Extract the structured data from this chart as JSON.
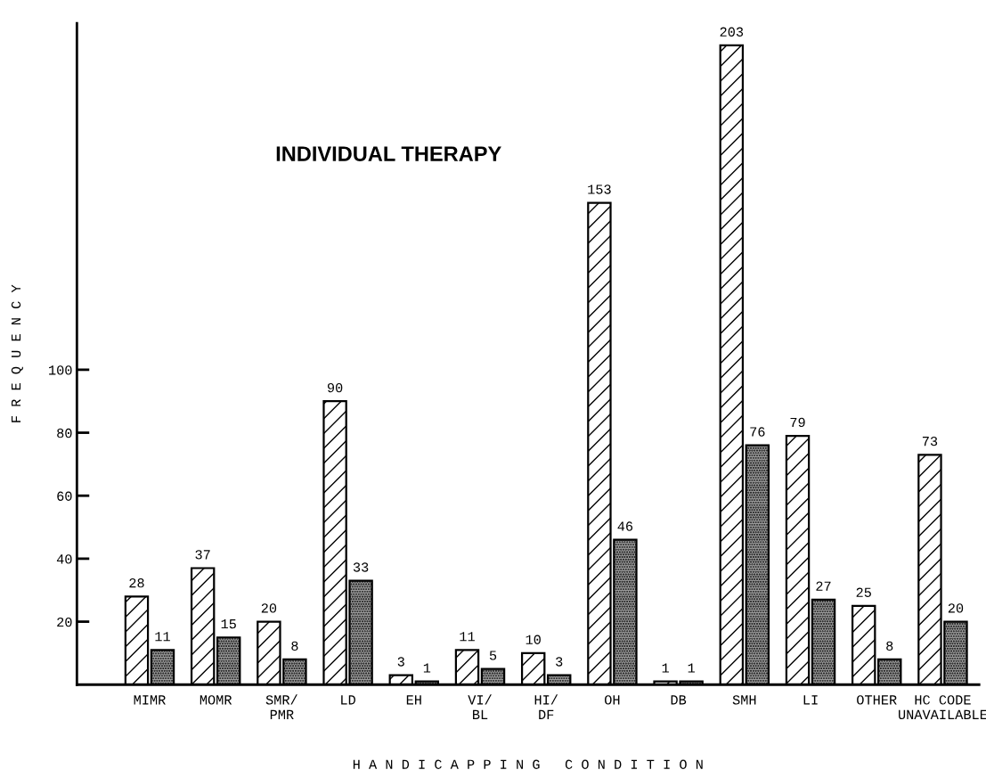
{
  "chart_data": {
    "type": "bar",
    "title": "INDIVIDUAL THERAPY",
    "xlabel": "H A N D I C A P P I N G   C O N D I T I O N",
    "ylabel": "F R E Q U E N C Y",
    "categories": [
      "MIMR",
      "MOMR",
      "SMR/\nPMR",
      "LD",
      "EH",
      "VI/\nBL",
      "HI/\nDF",
      "OH",
      "DB",
      "SMH",
      "LI",
      "OTHER",
      "HC CODE\nUNAVAILABLE"
    ],
    "series": [
      {
        "color": "#ffffff",
        "values": [
          28,
          37,
          20,
          90,
          3,
          11,
          10,
          153,
          1,
          203,
          79,
          25,
          73
        ]
      },
      {
        "color": "#9a9a9a",
        "values": [
          11,
          15,
          8,
          33,
          1,
          5,
          3,
          46,
          1,
          76,
          27,
          8,
          20
        ]
      }
    ],
    "ylim": [
      0,
      210
    ],
    "yticks": [
      20,
      40,
      60,
      80,
      100
    ],
    "data_labels": true,
    "grid": false,
    "legend": false
  }
}
